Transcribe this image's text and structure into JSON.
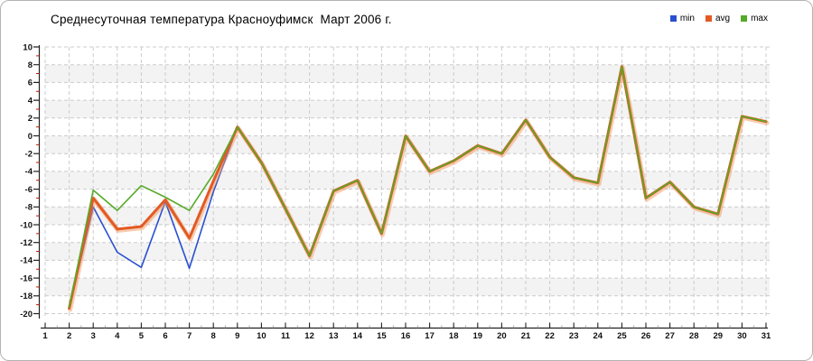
{
  "title": "Среднесуточная температура Красноуфимск  Март 2006 г.",
  "legend": [
    {
      "label": "min",
      "color": "#2a50d0"
    },
    {
      "label": "avg",
      "color": "#e25a24"
    },
    {
      "label": "max",
      "color": "#55aa28"
    }
  ],
  "colors": {
    "grid": "#cbcbcb",
    "axis": "#222222",
    "minor_tick": "#cc1100",
    "band_gray": "#f3f3f3",
    "band_white": "#ffffff",
    "avg_halo": "rgba(242,153,97,0.5)"
  },
  "chart_data": {
    "type": "line",
    "title": "Среднесуточная температура Красноуфимск  Март 2006 г.",
    "xlabel": "",
    "ylabel": "",
    "x": [
      1,
      2,
      3,
      4,
      5,
      6,
      7,
      8,
      9,
      10,
      11,
      12,
      13,
      14,
      15,
      16,
      17,
      18,
      19,
      20,
      21,
      22,
      23,
      24,
      25,
      26,
      27,
      28,
      29,
      30,
      31
    ],
    "ylim": [
      -20,
      10
    ],
    "y_ticks": [
      10,
      8,
      6,
      4,
      2,
      0,
      -2,
      -4,
      -6,
      -8,
      -10,
      -12,
      -14,
      -16,
      -18,
      -20
    ],
    "y_minor_step": 1,
    "grid": "dashed",
    "legend_position": "top-right",
    "series": [
      {
        "name": "min",
        "color": "#2a50d0",
        "width": 1.6,
        "values": [
          null,
          -19.4,
          -8.0,
          -13.1,
          -14.8,
          -7.4,
          -14.9,
          -6.3,
          1.0,
          -3.0,
          -8.2,
          -13.5,
          -6.2,
          -5.0,
          -11.0,
          0.0,
          -4.0,
          -2.8,
          -1.1,
          -2.0,
          1.8,
          -2.4,
          -4.7,
          -5.3,
          7.8,
          -7.0,
          -5.2,
          -8.0,
          -8.8,
          2.2,
          1.6
        ]
      },
      {
        "name": "avg",
        "color": "#e25a24",
        "width": 3,
        "values": [
          null,
          -19.4,
          -7.0,
          -10.5,
          -10.2,
          -7.2,
          -11.5,
          -5.1,
          1.0,
          -3.0,
          -8.2,
          -13.5,
          -6.2,
          -5.0,
          -11.0,
          0.0,
          -4.0,
          -2.8,
          -1.1,
          -2.0,
          1.8,
          -2.4,
          -4.7,
          -5.3,
          7.8,
          -7.0,
          -5.2,
          -8.0,
          -8.8,
          2.2,
          1.6
        ]
      },
      {
        "name": "max",
        "color": "#55aa28",
        "width": 1.6,
        "values": [
          null,
          -19.3,
          -6.1,
          -8.4,
          -5.6,
          -6.9,
          -8.4,
          -4.3,
          1.0,
          -3.0,
          -8.2,
          -13.5,
          -6.2,
          -5.0,
          -11.0,
          0.0,
          -4.0,
          -2.8,
          -1.1,
          -2.0,
          1.8,
          -2.4,
          -4.7,
          -5.3,
          7.8,
          -7.0,
          -5.2,
          -8.0,
          -8.8,
          2.2,
          1.6
        ]
      }
    ]
  }
}
